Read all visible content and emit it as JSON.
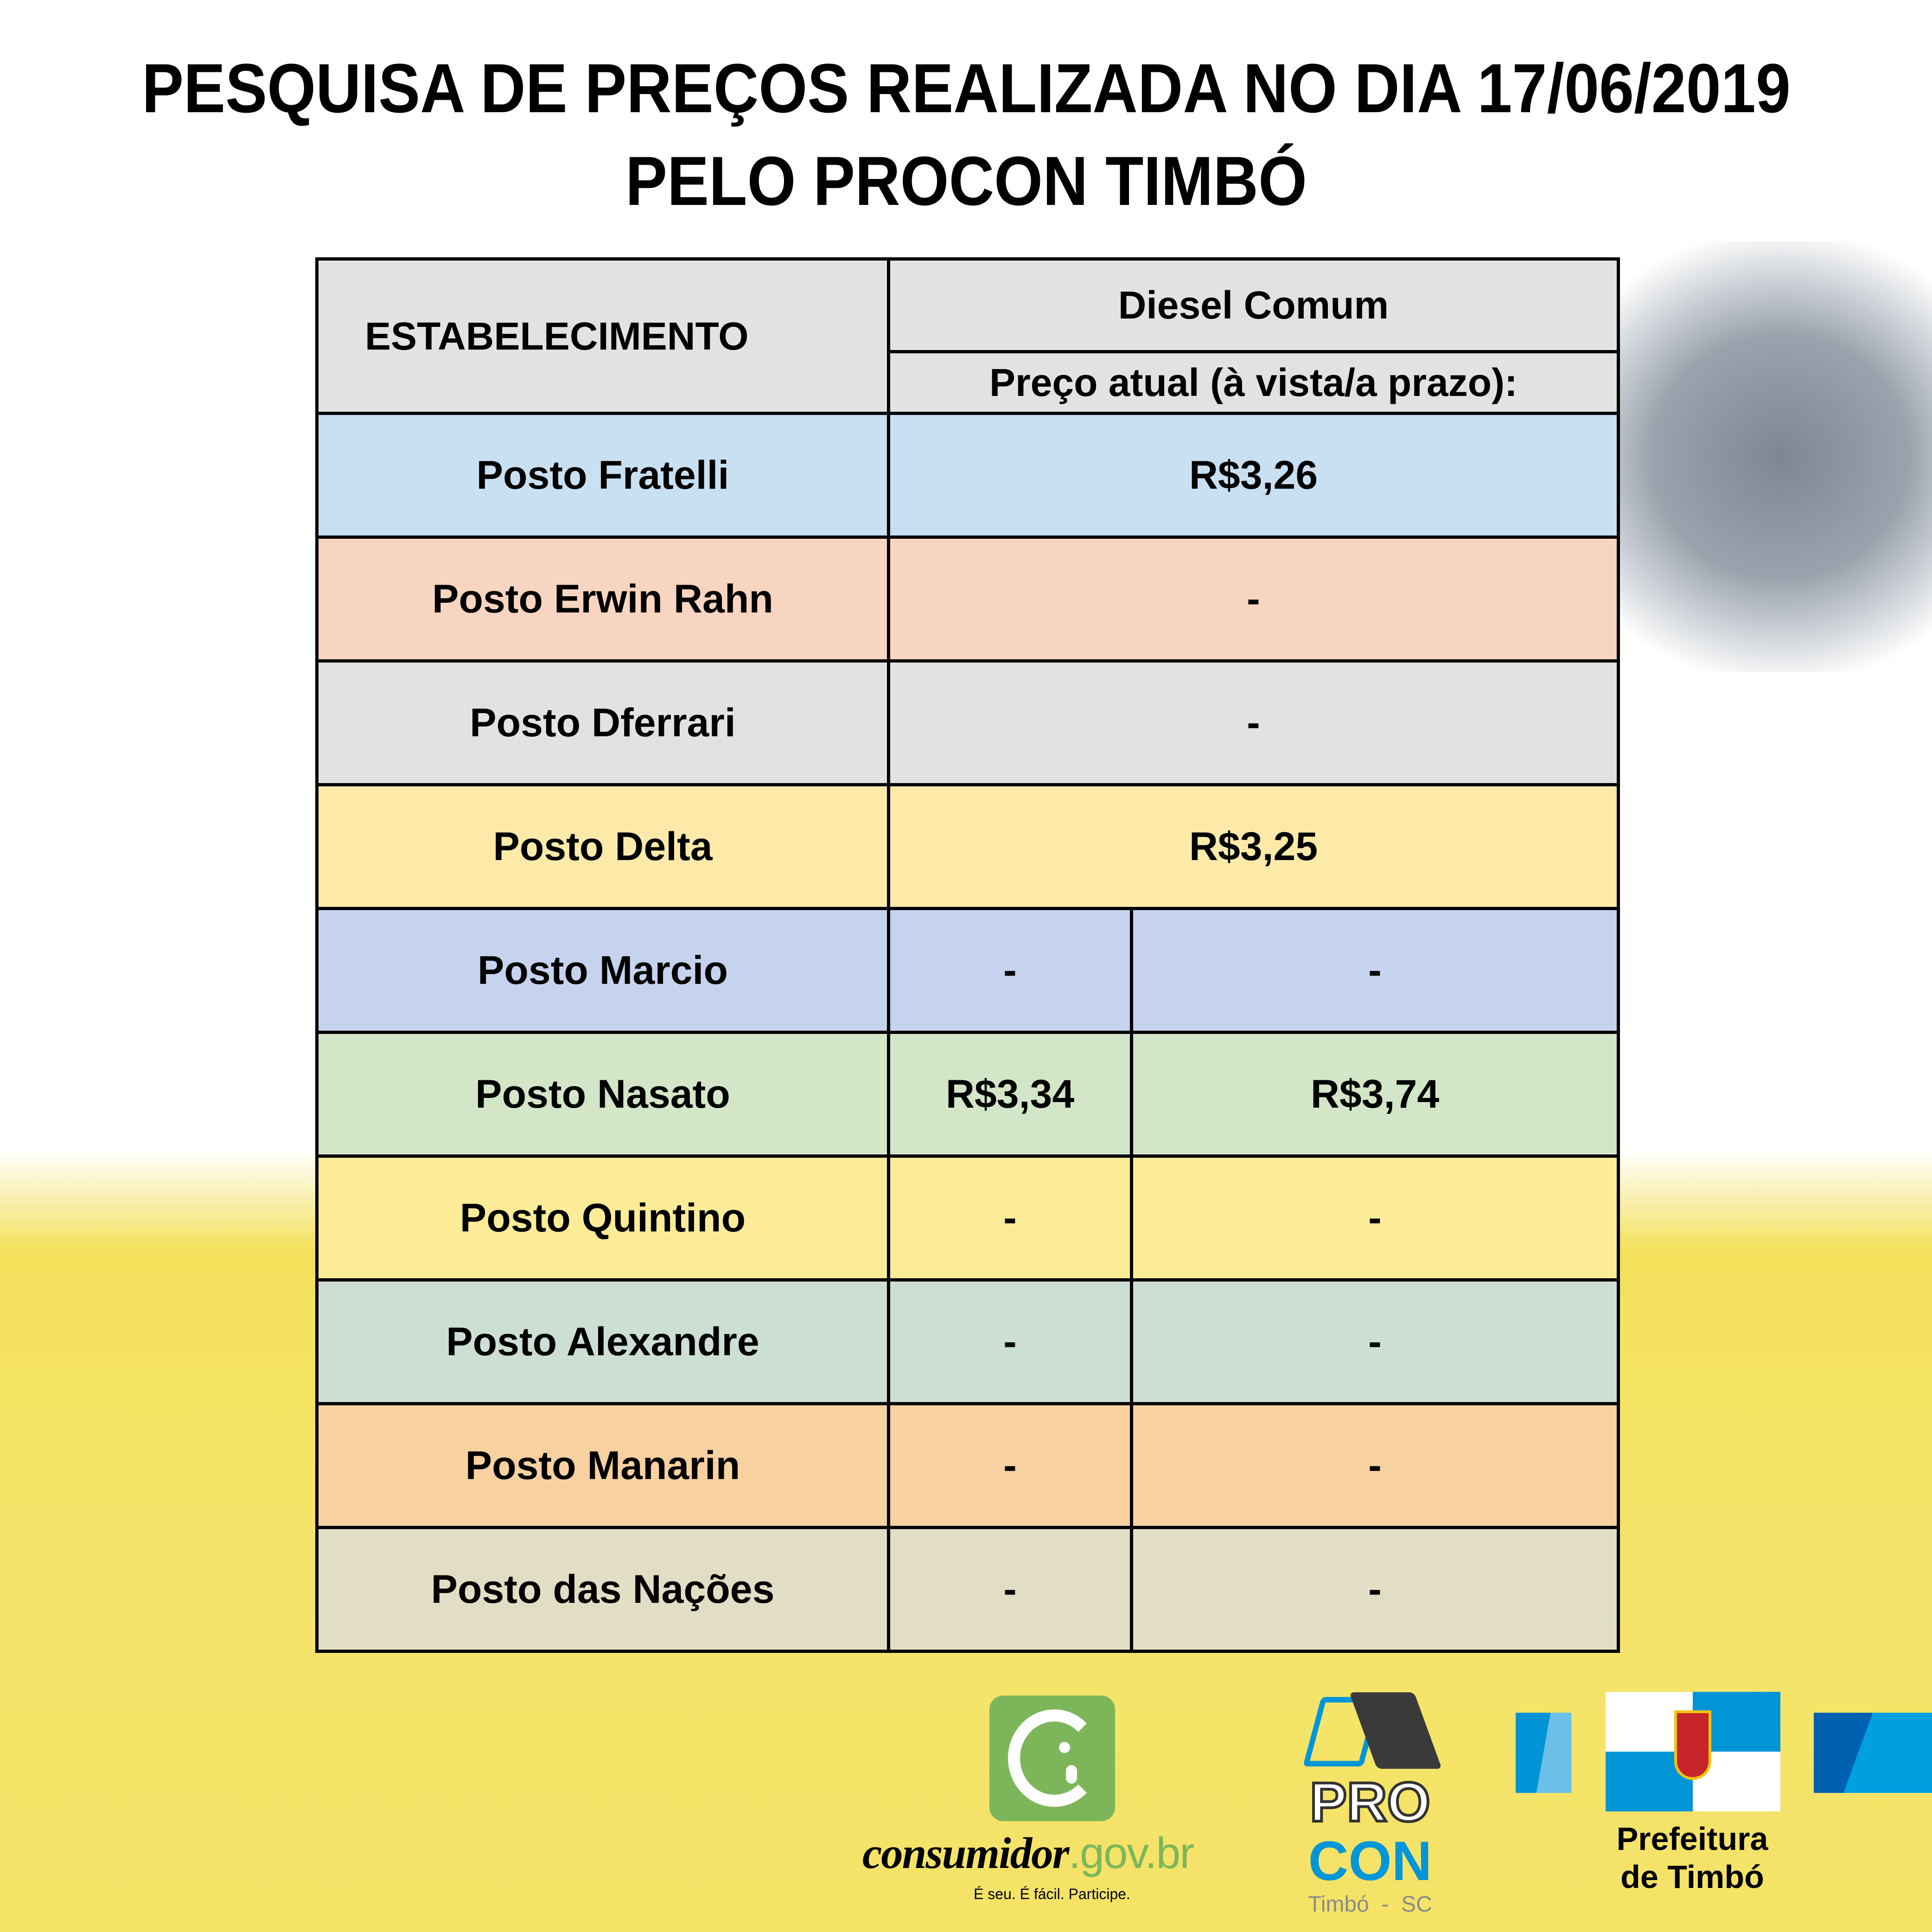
{
  "title": {
    "line1": "PESQUISA DE PREÇOS REALIZADA NO DIA 17/06/2019",
    "line2": "PELO PROCON TIMBÓ"
  },
  "table": {
    "col_establishment": "ESTABELECIMENTO",
    "col_fuel": "Diesel Comum",
    "col_price": "Preço atual (à vista/a prazo):",
    "rows": [
      {
        "name": "Posto Fratelli",
        "price": "R$3,26",
        "color": "#c9dff2"
      },
      {
        "name": "Posto Erwin Rahn",
        "price": "-",
        "color": "#f8d5c0"
      },
      {
        "name": "Posto Dferrari",
        "price": "-",
        "color": "#e2e2e2"
      },
      {
        "name": "Posto Delta",
        "price": "R$3,25",
        "color": "#fdeaa9"
      },
      {
        "name": "Posto Marcio",
        "cash": "-",
        "credit": "-",
        "color": "#c5d3ee"
      },
      {
        "name": "Posto Nasato",
        "cash": "R$3,34",
        "credit": "R$3,74",
        "color": "#d3e6c8"
      },
      {
        "name": "Posto Quintino",
        "cash": "-",
        "credit": "-",
        "color": "#fcec98"
      },
      {
        "name": "Posto Alexandre",
        "cash": "-",
        "credit": "-",
        "color": "#cddfd4"
      },
      {
        "name": "Posto Manarin",
        "cash": "-",
        "credit": "-",
        "color": "#f7d1a0"
      },
      {
        "name": "Posto das Nações",
        "cash": "-",
        "credit": "-",
        "color": "#e2dec5"
      }
    ]
  },
  "logos": {
    "consumidor": {
      "name": "consumidor",
      "domain": ".gov.br",
      "tagline": "É seu. É fácil. Participe."
    },
    "procon": {
      "line1": "PRO",
      "line2": "CON",
      "place": "Timbó  -  SC"
    },
    "prefeitura": {
      "line1": "Prefeitura",
      "line2": "de Timbó"
    }
  }
}
